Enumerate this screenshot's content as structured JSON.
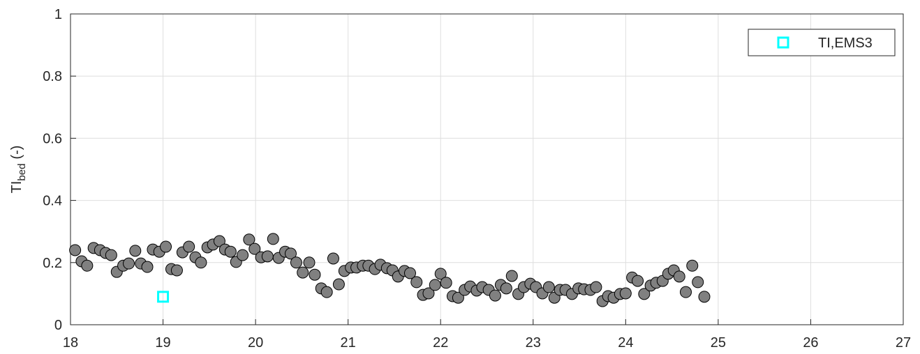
{
  "chart_data": {
    "type": "scatter",
    "ylabel": {
      "text": "TI",
      "subscript": "bed",
      "unit": "(-)"
    },
    "xlim": [
      18,
      27
    ],
    "xticks": [
      18,
      19,
      20,
      21,
      22,
      23,
      24,
      25,
      26,
      27
    ],
    "ylim": [
      0,
      1
    ],
    "yticks": [
      0,
      0.2,
      0.4,
      0.6,
      0.8,
      1
    ],
    "grid": true,
    "legend": "northeast",
    "series": [
      {
        "color": "#808080",
        "marker": "circle",
        "x": [
          18.05,
          18.12,
          18.18,
          18.25,
          18.32,
          18.38,
          18.44,
          18.5,
          18.57,
          18.63,
          18.7,
          18.76,
          18.83,
          18.89,
          18.96,
          19.03,
          19.09,
          19.15,
          19.21,
          19.28,
          19.35,
          19.41,
          19.48,
          19.54,
          19.61,
          19.67,
          19.73,
          19.79,
          19.86,
          19.93,
          19.99,
          20.06,
          20.13,
          20.19,
          20.25,
          20.32,
          20.38,
          20.44,
          20.51,
          20.58,
          20.64,
          20.71,
          20.77,
          20.84,
          20.9,
          20.96,
          21.03,
          21.09,
          21.16,
          21.22,
          21.29,
          21.35,
          21.42,
          21.48,
          21.54,
          21.61,
          21.67,
          21.74,
          21.81,
          21.87,
          21.94,
          22.0,
          22.06,
          22.13,
          22.19,
          22.26,
          22.32,
          22.39,
          22.45,
          22.52,
          22.59,
          22.65,
          22.71,
          22.77,
          22.84,
          22.9,
          22.97,
          23.03,
          23.1,
          23.17,
          23.23,
          23.29,
          23.35,
          23.42,
          23.49,
          23.55,
          23.62,
          23.68,
          23.75,
          23.81,
          23.87,
          23.94,
          24.0,
          24.07,
          24.13,
          24.2,
          24.27,
          24.33,
          24.4,
          24.46,
          24.52,
          24.58,
          24.65,
          24.72,
          24.78,
          24.85
        ],
        "values": [
          0.24,
          0.204,
          0.19,
          0.247,
          0.24,
          0.231,
          0.224,
          0.17,
          0.19,
          0.197,
          0.238,
          0.197,
          0.186,
          0.242,
          0.235,
          0.251,
          0.179,
          0.175,
          0.233,
          0.251,
          0.217,
          0.2,
          0.249,
          0.258,
          0.269,
          0.242,
          0.235,
          0.202,
          0.224,
          0.274,
          0.244,
          0.217,
          0.22,
          0.276,
          0.215,
          0.235,
          0.229,
          0.2,
          0.168,
          0.2,
          0.161,
          0.117,
          0.105,
          0.213,
          0.13,
          0.173,
          0.184,
          0.184,
          0.19,
          0.19,
          0.179,
          0.193,
          0.182,
          0.175,
          0.155,
          0.173,
          0.166,
          0.137,
          0.096,
          0.101,
          0.128,
          0.164,
          0.135,
          0.092,
          0.087,
          0.112,
          0.123,
          0.11,
          0.121,
          0.112,
          0.094,
          0.128,
          0.117,
          0.157,
          0.099,
          0.121,
          0.132,
          0.121,
          0.101,
          0.121,
          0.087,
          0.112,
          0.112,
          0.099,
          0.117,
          0.114,
          0.112,
          0.121,
          0.076,
          0.092,
          0.087,
          0.099,
          0.101,
          0.152,
          0.141,
          0.099,
          0.126,
          0.135,
          0.141,
          0.164,
          0.175,
          0.155,
          0.105,
          0.19,
          0.137,
          0.09
        ]
      },
      {
        "name": "TI,EMS3",
        "color": "#00ffff",
        "marker": "square",
        "x": [
          19.0
        ],
        "values": [
          0.09
        ]
      }
    ]
  }
}
